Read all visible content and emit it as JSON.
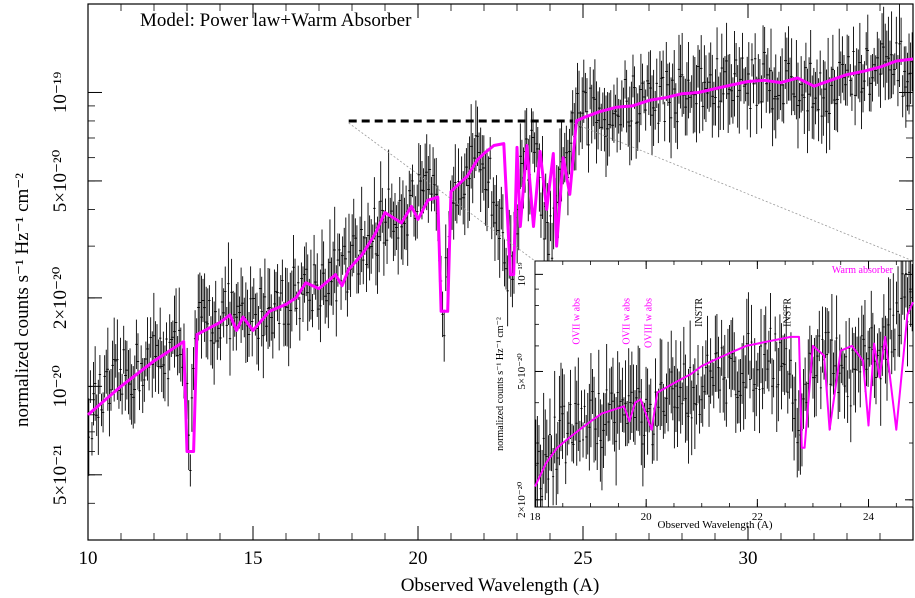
{
  "chart_data": [
    {
      "id": "main",
      "type": "line",
      "title": "Model: Power law+Warm Absorber",
      "xlabel": "Observed Wavelength (A)",
      "ylabel": "normalized counts s⁻¹ Hz⁻¹ cm⁻²",
      "xlim": [
        10,
        35
      ],
      "ylim": [
        3e-21,
        2e-19
      ],
      "y_scale": "log",
      "x_ticks": [
        10,
        15,
        20,
        25,
        30
      ],
      "x_tick_labels": [
        "10",
        "15",
        "20",
        "25",
        "30"
      ],
      "y_ticks": [
        5e-21,
        1e-20,
        2e-20,
        5e-20,
        1e-19
      ],
      "y_tick_labels": [
        "5×10⁻²¹",
        "10⁻²⁰",
        "2×10⁻²⁰",
        "5×10⁻²⁰",
        "10⁻¹⁹"
      ],
      "series": [
        {
          "kind": "data",
          "color": "#000000",
          "x": [
            10,
            11,
            12,
            12.9,
            13.1,
            13.3,
            14.3,
            14.6,
            15,
            15.2,
            15.8,
            16.3,
            16.8,
            17.5,
            17.8,
            18.1,
            18.6,
            19,
            19.5,
            20,
            20.5,
            20.8,
            21,
            21.5,
            22,
            22.8,
            23.1,
            23.5,
            24,
            24.5,
            24.7,
            25.5,
            26,
            26.5,
            27,
            28,
            29,
            30,
            31,
            32,
            33,
            34,
            35
          ],
          "y": [
            8e-21,
            1.05e-20,
            1.25e-20,
            1.4e-20,
            6e-21,
            1.6e-20,
            1.8e-20,
            1.6e-20,
            1.65e-20,
            1.8e-20,
            1.9e-20,
            2.1e-20,
            2.2e-20,
            2.4e-20,
            2.5e-20,
            2.7e-20,
            3.2e-20,
            3.7e-20,
            4e-20,
            4.2e-20,
            4.5e-20,
            1.8e-20,
            5e-20,
            5.5e-20,
            6e-20,
            2.4e-20,
            5e-20,
            6.5e-20,
            3e-20,
            5.8e-20,
            8e-20,
            8.5e-20,
            8.8e-20,
            9.2e-20,
            9.5e-20,
            1e-19,
            1.05e-19,
            1.1e-19,
            1.1e-19,
            1e-19,
            1.1e-19,
            1.2e-19,
            1.2e-19
          ]
        },
        {
          "kind": "model",
          "color": "#ff00ff",
          "x": [
            10,
            11,
            12,
            12.9,
            13.0,
            13.1,
            13.2,
            13.3,
            14.0,
            14.3,
            14.5,
            14.7,
            15.0,
            15.5,
            16.0,
            16.3,
            16.6,
            17.0,
            17.5,
            17.7,
            17.9,
            18.3,
            18.7,
            19.0,
            19.5,
            19.8,
            20.0,
            20.3,
            20.6,
            20.7,
            20.8,
            20.9,
            21.0,
            21.5,
            21.8,
            22.0,
            22.3,
            22.6,
            22.8,
            22.9,
            23.0,
            23.1,
            23.3,
            23.5,
            23.7,
            23.9,
            24.1,
            24.2,
            24.4,
            24.6,
            24.8,
            25.0,
            25.5,
            26.0,
            26.5,
            27.0,
            27.5,
            28.0,
            28.5,
            29.0,
            29.5,
            30.0,
            30.5,
            31.0,
            31.5,
            32.0,
            32.5,
            33.0,
            33.5,
            34.0,
            34.5,
            35.0
          ],
          "y": [
            8e-21,
            1e-20,
            1.22e-20,
            1.42e-20,
            6e-21,
            6e-21,
            6e-21,
            1.5e-20,
            1.65e-20,
            1.75e-20,
            1.55e-20,
            1.72e-20,
            1.55e-20,
            1.8e-20,
            1.9e-20,
            2e-20,
            2.25e-20,
            2.15e-20,
            2.4e-20,
            2.2e-20,
            2.5e-20,
            2.8e-20,
            3.3e-20,
            3.9e-20,
            3.6e-20,
            4.1e-20,
            3.7e-20,
            4.3e-20,
            4.4e-20,
            1.8e-20,
            1.8e-20,
            1.8e-20,
            4.6e-20,
            5.2e-20,
            5.9e-20,
            6.2e-20,
            6.6e-20,
            6.7e-20,
            2.4e-20,
            2.4e-20,
            6.5e-20,
            3.5e-20,
            6.6e-20,
            3.5e-20,
            6.3e-20,
            4e-20,
            6.2e-20,
            3e-20,
            6e-20,
            4.5e-20,
            8e-20,
            8.2e-20,
            8.6e-20,
            8.9e-20,
            9e-20,
            9.4e-20,
            9.6e-20,
            9.9e-20,
            1e-19,
            1.03e-19,
            1.06e-19,
            1.09e-19,
            1.1e-19,
            1.08e-19,
            1.12e-19,
            1.05e-19,
            1.1e-19,
            1.15e-19,
            1.18e-19,
            1.22e-19,
            1.28e-19,
            1.3e-19
          ]
        }
      ],
      "reference_line": {
        "style": "dashed",
        "x": [
          17.9,
          24.7
        ],
        "y": 8e-20
      }
    },
    {
      "id": "inset",
      "type": "line",
      "xlabel": "Observed Wavelength (A)",
      "ylabel": "normalized counts s⁻¹ Hz⁻¹ cm⁻²",
      "xlim": [
        18,
        24.8
      ],
      "ylim": [
        1.9e-20,
        1.1e-19
      ],
      "y_scale": "log",
      "x_ticks": [
        18,
        20,
        22,
        24
      ],
      "x_tick_labels": [
        "18",
        "20",
        "22",
        "24"
      ],
      "y_ticks": [
        2e-20,
        5e-20,
        1e-19
      ],
      "y_tick_labels": [
        "2×10⁻²⁰",
        "5×10⁻²⁰",
        "10⁻¹⁹"
      ],
      "legend": {
        "label": "Warm absorber",
        "color": "#ff00ff",
        "placement": "top-right"
      },
      "annotations": [
        {
          "text": "OVII w abs",
          "x": 18.8,
          "color": "#ff00ff"
        },
        {
          "text": "OVII w abs",
          "x": 19.7,
          "color": "#ff00ff"
        },
        {
          "text": "OVIII w abs",
          "x": 20.1,
          "color": "#ff00ff"
        },
        {
          "text": "INSTR",
          "x": 21.0,
          "color": "#000000"
        },
        {
          "text": "INSTR",
          "x": 22.6,
          "color": "#000000"
        }
      ],
      "series": [
        {
          "kind": "data",
          "color": "#000000",
          "x": [
            18.0,
            18.3,
            18.6,
            18.9,
            19.2,
            19.5,
            19.8,
            20.1,
            20.4,
            20.7,
            21.0,
            21.3,
            21.6,
            21.9,
            22.2,
            22.5,
            22.8,
            22.9,
            23.1,
            23.4,
            23.7,
            24.0,
            24.3,
            24.5,
            24.8
          ],
          "y": [
            2.3e-20,
            2.9e-20,
            3.3e-20,
            3.5e-20,
            3.6e-20,
            3.8e-20,
            3.9e-20,
            3.3e-20,
            4.2e-20,
            4.4e-20,
            4.5e-20,
            4.8e-20,
            5e-20,
            5.3e-20,
            5.5e-20,
            5.6e-20,
            3e-20,
            5e-20,
            5.6e-20,
            5.2e-20,
            4.8e-20,
            5.4e-20,
            6e-20,
            7.5e-20,
            9.5e-20
          ]
        },
        {
          "kind": "model",
          "color": "#ff00ff",
          "x": [
            18.0,
            18.2,
            18.4,
            18.6,
            18.8,
            19.0,
            19.2,
            19.4,
            19.6,
            19.7,
            19.8,
            19.9,
            20.1,
            20.2,
            20.4,
            20.6,
            20.8,
            21.0,
            21.2,
            21.4,
            21.6,
            21.8,
            22.0,
            22.2,
            22.4,
            22.6,
            22.75,
            22.8,
            22.85,
            23.0,
            23.2,
            23.3,
            23.5,
            23.7,
            23.9,
            24.0,
            24.1,
            24.2,
            24.3,
            24.5,
            24.7,
            24.8
          ],
          "y": [
            2.2e-20,
            2.6e-20,
            2.9e-20,
            3.1e-20,
            3.3e-20,
            3.5e-20,
            3.7e-20,
            3.8e-20,
            3.9e-20,
            3.5e-20,
            4e-20,
            4.1e-20,
            3.3e-20,
            4.3e-20,
            4.5e-20,
            4.7e-20,
            4.9e-20,
            5.2e-20,
            5.4e-20,
            5.6e-20,
            5.8e-20,
            6e-20,
            6.1e-20,
            6.2e-20,
            6.3e-20,
            6.4e-20,
            6.4e-20,
            2.9e-20,
            2.9e-20,
            6e-20,
            5.6e-20,
            3.3e-20,
            5.8e-20,
            6e-20,
            5.4e-20,
            3.4e-20,
            6.1e-20,
            4.8e-20,
            6.4e-20,
            3.3e-20,
            7.5e-20,
            8.2e-20
          ]
        }
      ]
    }
  ]
}
